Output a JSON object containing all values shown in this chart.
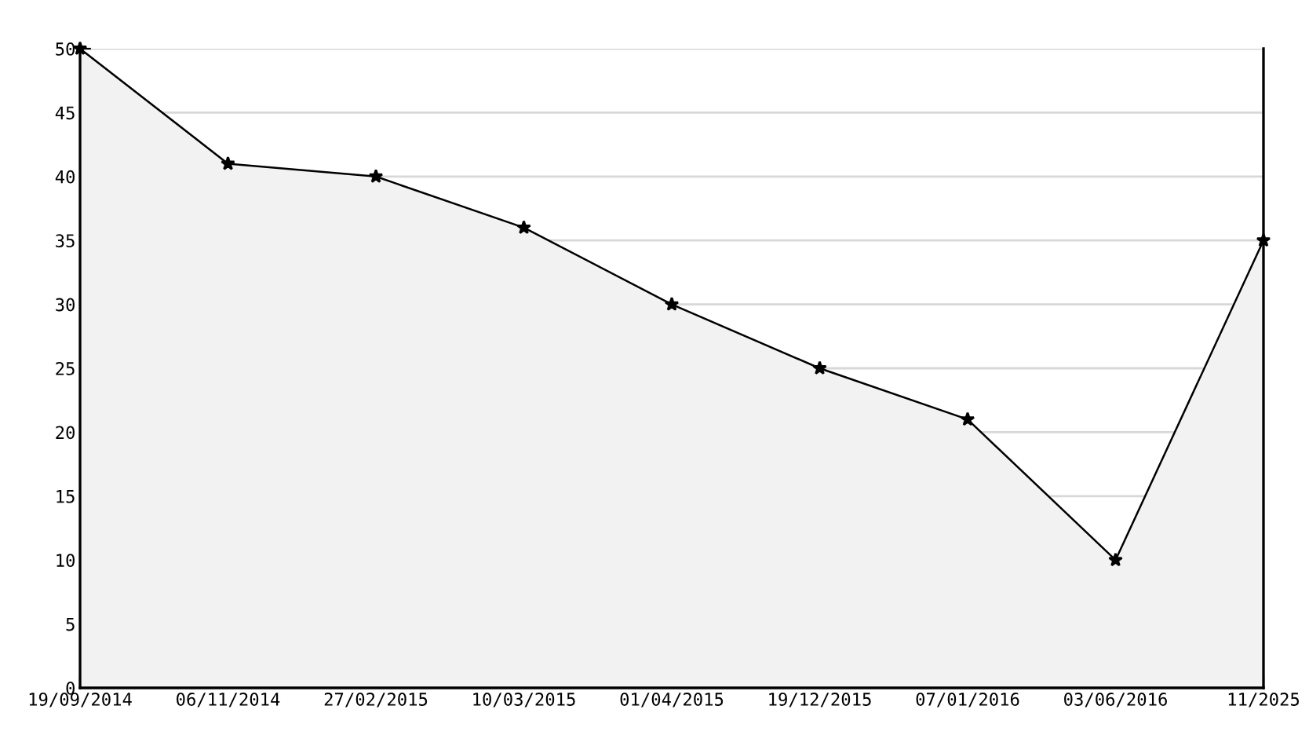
{
  "chart_data": {
    "type": "area",
    "categories": [
      "19/09/2014",
      "06/11/2014",
      "27/02/2015",
      "10/03/2015",
      "01/04/2015",
      "19/12/2015",
      "07/01/2016",
      "03/06/2016",
      "11/2025"
    ],
    "series": [
      {
        "color": "#000000",
        "values": [
          50,
          41,
          40,
          36,
          30,
          25,
          21,
          10,
          35
        ]
      }
    ],
    "ylim": [
      0,
      50
    ],
    "yticks": [
      0,
      5,
      10,
      15,
      20,
      25,
      30,
      35,
      40,
      45,
      50
    ],
    "grid": "y",
    "marker": "star",
    "line_style": "solid",
    "legend": false
  }
}
